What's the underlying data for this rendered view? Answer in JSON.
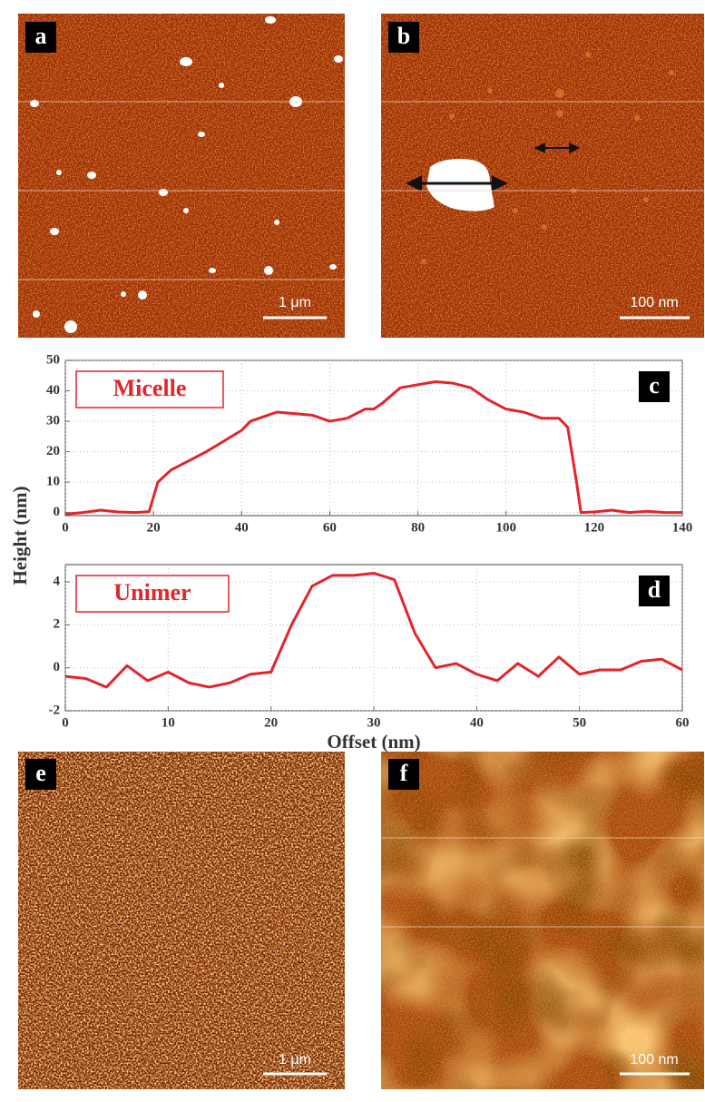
{
  "panels": [
    {
      "label": "a",
      "scale_bar": "1 μm"
    },
    {
      "label": "b",
      "scale_bar": "100 nm"
    },
    {
      "label": "e",
      "scale_bar": "1 μm"
    },
    {
      "label": "f",
      "scale_bar": "100 nm"
    }
  ],
  "chart_data": [
    {
      "type": "line",
      "panel_label": "c",
      "ylabel": "Height (nm)",
      "x": [
        0,
        4,
        8,
        12,
        16,
        19,
        21,
        24,
        28,
        32,
        36,
        40,
        42,
        44,
        48,
        52,
        56,
        60,
        64,
        68,
        70,
        72,
        76,
        80,
        84,
        88,
        92,
        96,
        100,
        104,
        108,
        112,
        114,
        116,
        117,
        120,
        124,
        128,
        132,
        136,
        140
      ],
      "series": [
        {
          "name": "Micelle",
          "color": "#e3242b",
          "values": [
            -0.5,
            0,
            0.8,
            0.2,
            0,
            0.3,
            10,
            14,
            17,
            20,
            23.5,
            27,
            30,
            31,
            33,
            32.5,
            32,
            30,
            31,
            34,
            34,
            36,
            41,
            42,
            43,
            42.5,
            41,
            37,
            34,
            33,
            31,
            31,
            28,
            10,
            0,
            0.2,
            0.8,
            0,
            0.4,
            0,
            0
          ]
        }
      ],
      "xlim": [
        0,
        140
      ],
      "xticks": [
        0,
        20,
        40,
        60,
        80,
        100,
        120,
        140
      ],
      "ylim": [
        -1,
        50
      ],
      "yticks": [
        0,
        10,
        20,
        30,
        40,
        50
      ],
      "grid": true
    },
    {
      "type": "line",
      "panel_label": "d",
      "xlabel": "Offset (nm)",
      "x": [
        0,
        2,
        4,
        6,
        8,
        10,
        12,
        14,
        16,
        18,
        20,
        22,
        24,
        26,
        28,
        30,
        32,
        34,
        36,
        38,
        40,
        42,
        44,
        46,
        48,
        50,
        52,
        54,
        56,
        58,
        60
      ],
      "series": [
        {
          "name": "Unimer",
          "color": "#e3242b",
          "values": [
            -0.4,
            -0.5,
            -0.9,
            0.1,
            -0.6,
            -0.2,
            -0.7,
            -0.9,
            -0.7,
            -0.3,
            -0.2,
            2.0,
            3.8,
            4.3,
            4.3,
            4.4,
            4.1,
            1.6,
            0.0,
            0.2,
            -0.3,
            -0.6,
            0.2,
            -0.4,
            0.5,
            -0.3,
            -0.1,
            -0.1,
            0.3,
            0.4,
            -0.1
          ]
        }
      ],
      "xlim": [
        0,
        60
      ],
      "xticks": [
        0,
        10,
        20,
        30,
        40,
        50,
        60
      ],
      "ylim": [
        -2,
        4.8
      ],
      "yticks": [
        -2,
        0,
        2,
        4
      ],
      "grid": true
    }
  ]
}
